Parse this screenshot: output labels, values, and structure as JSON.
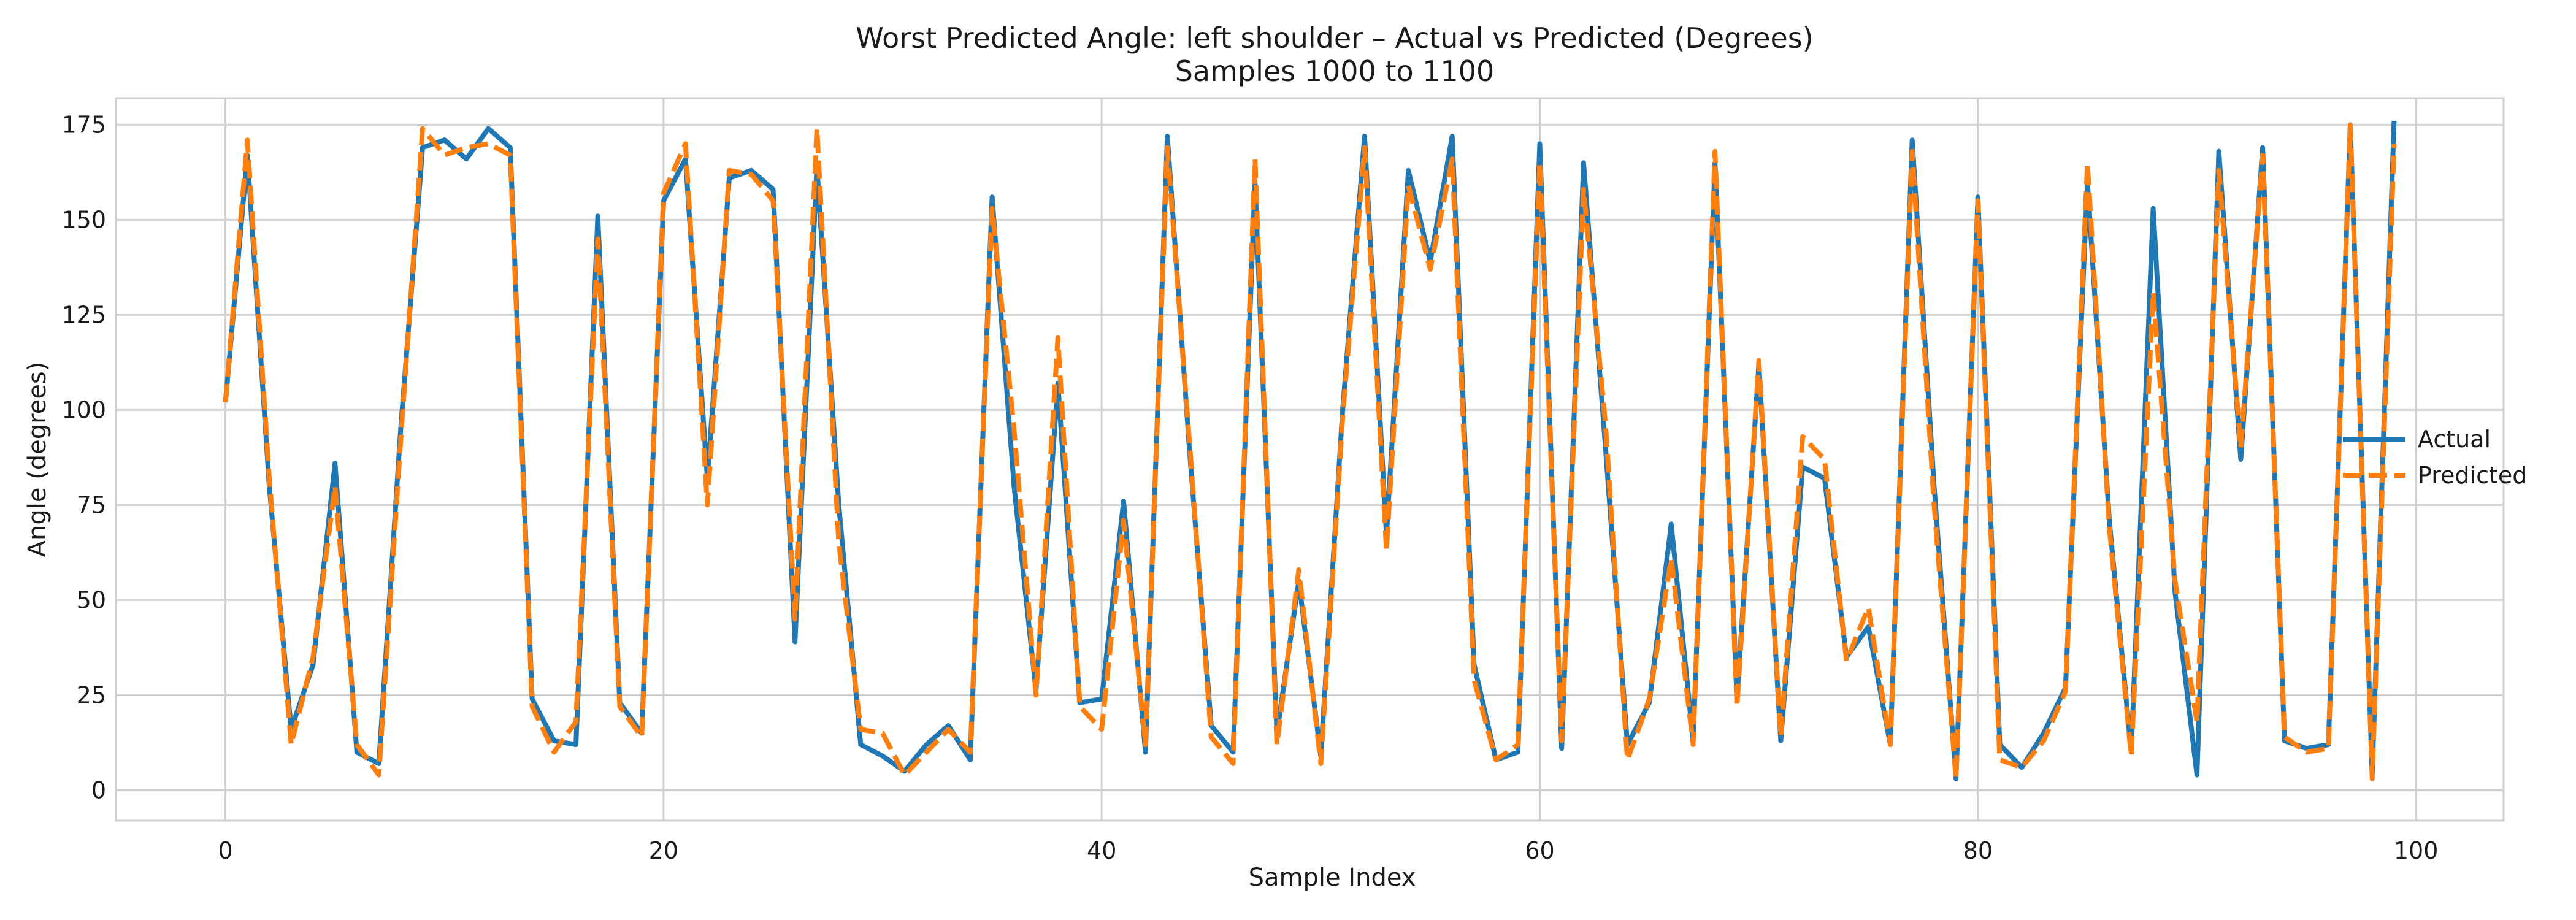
{
  "chart_data": {
    "type": "line",
    "title": "Worst Predicted Angle: left shoulder – Actual vs Predicted (Degrees)",
    "subtitle": "Samples 1000 to 1100",
    "xlabel": "Sample Index",
    "ylabel": "Angle (degrees)",
    "xlim": [
      -5,
      104
    ],
    "ylim": [
      -8,
      182
    ],
    "xticks": [
      0,
      20,
      40,
      60,
      80,
      100
    ],
    "yticks": [
      0,
      25,
      50,
      75,
      100,
      125,
      150,
      175
    ],
    "grid": true,
    "legend_position": "center-right",
    "series": [
      {
        "name": "Actual",
        "color": "#1f77b4",
        "style": "solid",
        "x": [
          0,
          1,
          2,
          3,
          4,
          5,
          6,
          7,
          8,
          9,
          10,
          11,
          12,
          13,
          14,
          15,
          16,
          17,
          18,
          19,
          20,
          21,
          22,
          23,
          24,
          25,
          26,
          27,
          28,
          29,
          30,
          31,
          32,
          33,
          34,
          35,
          36,
          37,
          38,
          39,
          40,
          41,
          42,
          43,
          44,
          45,
          46,
          47,
          48,
          49,
          50,
          51,
          52,
          53,
          54,
          55,
          56,
          57,
          58,
          59,
          60,
          61,
          62,
          63,
          64,
          65,
          66,
          67,
          68,
          69,
          70,
          71,
          72,
          73,
          74,
          75,
          76,
          77,
          78,
          79,
          80,
          81,
          82,
          83,
          84,
          85,
          86,
          87,
          88,
          89,
          90,
          91,
          92,
          93,
          94,
          95,
          96,
          97,
          98,
          99
        ],
        "values": [
          102,
          167,
          80,
          16,
          33,
          86,
          10,
          7,
          95,
          169,
          171,
          166,
          174,
          169,
          24,
          13,
          12,
          151,
          23,
          15,
          155,
          166,
          82,
          161,
          163,
          158,
          39,
          164,
          75,
          12,
          9,
          5,
          12,
          17,
          8,
          156,
          80,
          26,
          107,
          23,
          24,
          76,
          10,
          172,
          90,
          17,
          10,
          160,
          15,
          55,
          9,
          100,
          172,
          67,
          163,
          139,
          172,
          33,
          8,
          10,
          170,
          11,
          165,
          90,
          12,
          23,
          70,
          13,
          165,
          24,
          112,
          13,
          85,
          82,
          35,
          43,
          12,
          171,
          80,
          3,
          156,
          12,
          6,
          15,
          27,
          160,
          71,
          10,
          153,
          52,
          4,
          168,
          87,
          169,
          13,
          11,
          12,
          175,
          4,
          176
        ]
      },
      {
        "name": "Predicted",
        "color": "#ff7f0e",
        "style": "dashed",
        "x": [
          0,
          1,
          2,
          3,
          4,
          5,
          6,
          7,
          8,
          9,
          10,
          11,
          12,
          13,
          14,
          15,
          16,
          17,
          18,
          19,
          20,
          21,
          22,
          23,
          24,
          25,
          26,
          27,
          28,
          29,
          30,
          31,
          32,
          33,
          34,
          35,
          36,
          37,
          38,
          39,
          40,
          41,
          42,
          43,
          44,
          45,
          46,
          47,
          48,
          49,
          50,
          51,
          52,
          53,
          54,
          55,
          56,
          57,
          58,
          59,
          60,
          61,
          62,
          63,
          64,
          65,
          66,
          67,
          68,
          69,
          70,
          71,
          72,
          73,
          74,
          75,
          76,
          77,
          78,
          79,
          80,
          81,
          82,
          83,
          84,
          85,
          86,
          87,
          88,
          89,
          90,
          91,
          92,
          93,
          94,
          95,
          96,
          97,
          98,
          99
        ],
        "values": [
          102,
          171,
          82,
          12,
          35,
          80,
          12,
          4,
          92,
          174,
          167,
          169,
          170,
          167,
          22,
          10,
          18,
          145,
          22,
          14,
          157,
          170,
          75,
          163,
          162,
          155,
          45,
          174,
          65,
          16,
          15,
          4,
          10,
          16,
          10,
          153,
          95,
          25,
          119,
          22,
          16,
          71,
          12,
          169,
          92,
          14,
          7,
          166,
          12,
          58,
          7,
          98,
          169,
          63,
          159,
          137,
          166,
          29,
          8,
          12,
          165,
          13,
          158,
          96,
          8,
          24,
          61,
          12,
          168,
          22,
          113,
          14,
          93,
          87,
          34,
          48,
          12,
          168,
          75,
          3,
          155,
          8,
          6,
          13,
          26,
          165,
          69,
          9,
          131,
          55,
          18,
          163,
          90,
          167,
          14,
          10,
          11,
          175,
          3,
          170
        ]
      }
    ]
  }
}
